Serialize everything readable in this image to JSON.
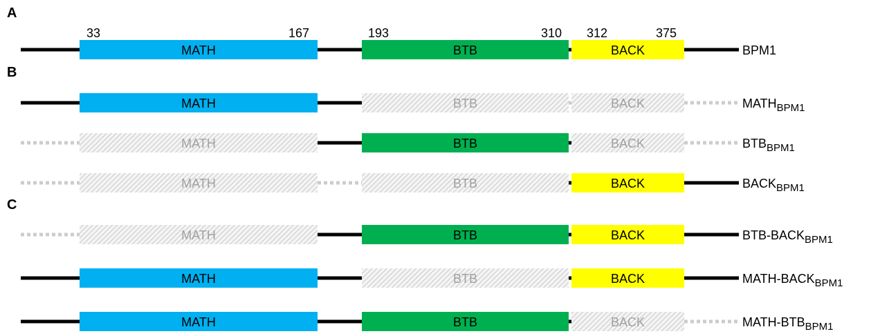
{
  "panels": [
    "A",
    "B",
    "C"
  ],
  "domains": [
    "MATH",
    "BTB",
    "BACK"
  ],
  "positions": [
    "33",
    "167",
    "193",
    "310",
    "312",
    "375"
  ],
  "constructs": [
    {
      "name": "BPM1",
      "domains_shown": [
        true,
        true,
        true
      ]
    },
    {
      "name": "MATH",
      "subscript": "BPM1",
      "domains_shown": [
        true,
        false,
        false
      ]
    },
    {
      "name": "BTB",
      "subscript": "BPM1",
      "domains_shown": [
        false,
        true,
        false
      ]
    },
    {
      "name": "BACK",
      "subscript": "BPM1",
      "domains_shown": [
        false,
        false,
        true
      ]
    },
    {
      "name": "BTB-BACK",
      "subscript": "BPM1",
      "domains_shown": [
        false,
        true,
        true
      ]
    },
    {
      "name": "MATH-BACK",
      "subscript": "BPM1",
      "domains_shown": [
        true,
        false,
        true
      ]
    },
    {
      "name": "MATH-BTB",
      "subscript": "BPM1",
      "domains_shown": [
        true,
        true,
        false
      ]
    }
  ]
}
